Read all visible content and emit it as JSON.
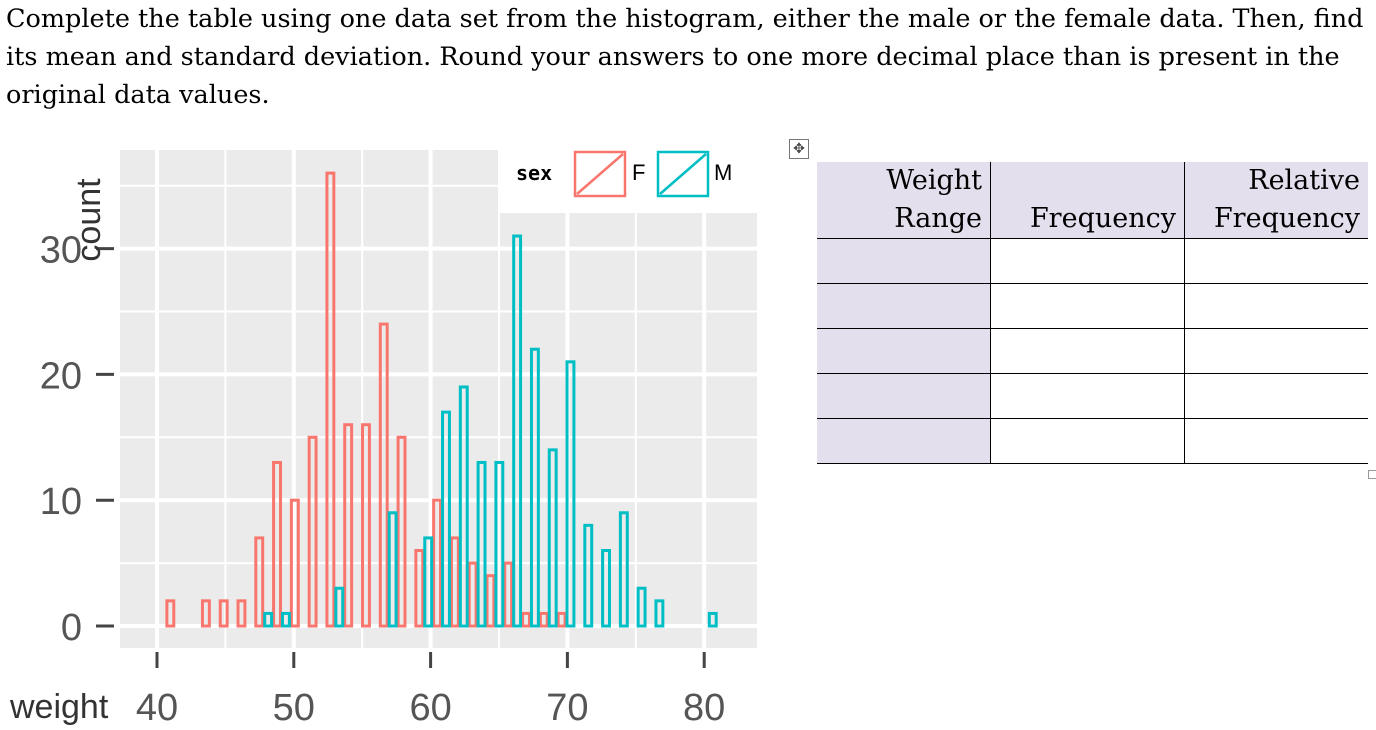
{
  "question": "Complete the table using one data set from the histogram, either the male or the female data. Then, find its mean and standard deviation. Round your answers to one more decimal place than is present in the original data values.",
  "table": {
    "headers": [
      [
        "Weight",
        "Range"
      ],
      [
        "",
        "Frequency"
      ],
      [
        "Relative",
        "Frequency"
      ]
    ],
    "rows": [
      [
        "",
        "",
        ""
      ],
      [
        "",
        "",
        ""
      ],
      [
        "",
        "",
        ""
      ],
      [
        "",
        "",
        ""
      ],
      [
        "",
        "",
        ""
      ]
    ],
    "move_icon": "move-arrows-icon"
  },
  "chart_data": {
    "type": "bar",
    "xlabel": "weight",
    "ylabel": "count",
    "xticks": [
      40,
      50,
      60,
      70,
      80
    ],
    "yticks": [
      0,
      10,
      20,
      30
    ],
    "xlim": [
      38,
      83
    ],
    "ylim": [
      -1.8,
      37.8
    ],
    "grid": true,
    "legend": {
      "title": "sex",
      "placement": "top-right",
      "entries": [
        "F",
        "M"
      ]
    },
    "colors": {
      "F": "#f8766d",
      "M": "#00bfc4"
    },
    "x": [
      40.0,
      41.3,
      42.6,
      43.9,
      45.2,
      46.5,
      47.8,
      49.1,
      50.4,
      51.7,
      53.0,
      54.3,
      55.6,
      56.9,
      58.2,
      59.5,
      60.8,
      62.1,
      63.4,
      64.7,
      66.0,
      67.3,
      68.6,
      69.9,
      71.2,
      72.5,
      73.8,
      75.1,
      76.4,
      77.7,
      79.0,
      80.3,
      81.6
    ],
    "series": [
      {
        "name": "F",
        "values": [
          0,
          2,
          0,
          2,
          2,
          2,
          7,
          13,
          10,
          15,
          36,
          16,
          16,
          24,
          15,
          6,
          10,
          7,
          5,
          4,
          5,
          1,
          1,
          1,
          0,
          0,
          0,
          0,
          0,
          0,
          0,
          0,
          0
        ]
      },
      {
        "name": "M",
        "values": [
          0,
          0,
          0,
          0,
          0,
          0,
          1,
          1,
          0,
          0,
          3,
          0,
          0,
          9,
          0,
          7,
          17,
          19,
          13,
          13,
          31,
          22,
          14,
          21,
          8,
          6,
          9,
          3,
          2,
          0,
          0,
          1,
          0
        ]
      }
    ]
  }
}
